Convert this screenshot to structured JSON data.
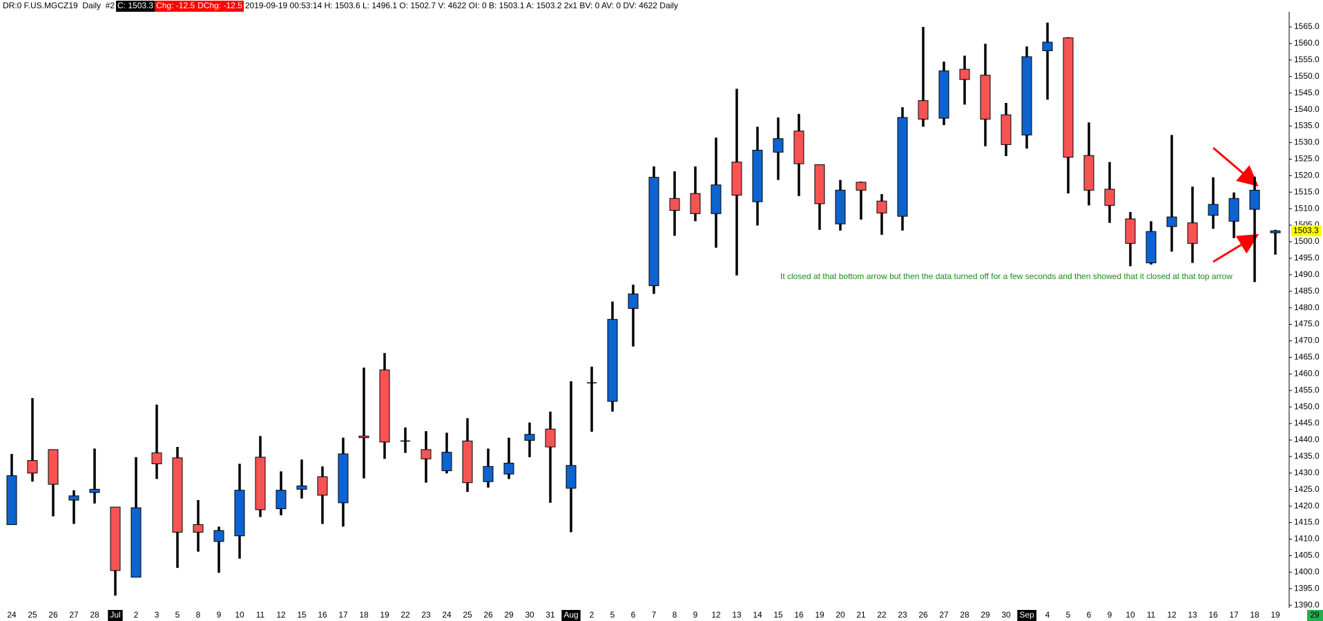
{
  "header": {
    "symbol": "DR:0 F.US.MGCZ19  Daily  #2",
    "close": "C: 1503.3",
    "change": "Chg: -12.5",
    "day_change": "DChg: -12.5",
    "details": "2019-09-19 00:53:14 H: 1503.6 L: 1496.1 O: 1502.7 V: 4622 OI: 0 B: 1503.1 A: 1503.2 2x1 BV: 0 AV: 0 DV: 4622 Daily"
  },
  "chart_data": {
    "type": "candlestick",
    "categories": [
      "24",
      "25",
      "26",
      "27",
      "28",
      "Jul",
      "2",
      "3",
      "5",
      "8",
      "9",
      "10",
      "11",
      "12",
      "15",
      "16",
      "17",
      "18",
      "19",
      "22",
      "23",
      "24",
      "25",
      "26",
      "29",
      "30",
      "31",
      "Aug",
      "2",
      "5",
      "6",
      "7",
      "8",
      "9",
      "12",
      "13",
      "14",
      "15",
      "16",
      "19",
      "20",
      "21",
      "22",
      "23",
      "26",
      "27",
      "28",
      "29",
      "30",
      "Sep",
      "4",
      "5",
      "6",
      "9",
      "10",
      "11",
      "12",
      "13",
      "16",
      "17",
      "18",
      "19"
    ],
    "open": [
      1414.4,
      1433.8,
      1437.1,
      1421.8,
      1424.1,
      1419.7,
      1398.5,
      1436.1,
      1434.6,
      1414.4,
      1409.3,
      1411.0,
      1434.8,
      1419.2,
      1425.1,
      1428.9,
      1421.0,
      1441.2,
      1461.2,
      1439.7,
      1437.1,
      1430.7,
      1439.7,
      1427.4,
      1429.7,
      1439.9,
      1443.3,
      1425.4,
      1457.3,
      1451.7,
      1479.8,
      1486.7,
      1513.1,
      1514.6,
      1508.5,
      1524.1,
      1512.1,
      1527.1,
      1533.5,
      1523.3,
      1505.4,
      1518.0,
      1512.3,
      1507.7,
      1542.7,
      1537.4,
      1552.2,
      1550.4,
      1538.4,
      1532.3,
      1557.8,
      1561.7,
      1526.1,
      1515.9,
      1506.9,
      1493.6,
      1504.6,
      1505.7,
      1508.0,
      1506.2,
      1509.8,
      1502.7
    ],
    "high": [
      1435.8,
      1452.7,
      1437.1,
      1424.8,
      1437.4,
      1419.7,
      1434.8,
      1450.7,
      1437.9,
      1421.8,
      1413.8,
      1432.8,
      1441.2,
      1430.5,
      1434.1,
      1432.0,
      1440.7,
      1461.9,
      1466.3,
      1443.8,
      1442.7,
      1442.2,
      1446.6,
      1437.4,
      1440.7,
      1445.3,
      1448.6,
      1457.8,
      1462.2,
      1481.9,
      1487.0,
      1522.8,
      1521.3,
      1522.8,
      1531.5,
      1546.3,
      1534.8,
      1537.6,
      1538.7,
      1523.3,
      1518.7,
      1518.2,
      1514.4,
      1540.7,
      1565.0,
      1554.5,
      1556.3,
      1559.9,
      1542.0,
      1559.1,
      1566.3,
      1561.9,
      1536.1,
      1524.1,
      1509.0,
      1506.2,
      1532.3,
      1516.7,
      1519.5,
      1514.9,
      1519.7,
      1503.6
    ],
    "low": [
      1414.4,
      1427.4,
      1416.9,
      1414.6,
      1420.8,
      1392.9,
      1398.5,
      1428.2,
      1401.3,
      1406.2,
      1399.8,
      1404.1,
      1416.7,
      1417.2,
      1422.3,
      1414.6,
      1413.8,
      1428.4,
      1434.3,
      1436.1,
      1427.1,
      1429.9,
      1424.3,
      1425.6,
      1428.2,
      1434.8,
      1421.0,
      1412.1,
      1442.5,
      1448.6,
      1468.3,
      1484.2,
      1501.8,
      1506.2,
      1498.2,
      1489.8,
      1504.9,
      1518.7,
      1513.8,
      1503.6,
      1503.4,
      1506.7,
      1502.1,
      1503.4,
      1534.8,
      1535.3,
      1541.5,
      1528.9,
      1525.9,
      1528.2,
      1543.0,
      1514.6,
      1511.0,
      1505.7,
      1492.6,
      1493.1,
      1497.0,
      1493.6,
      1503.9,
      1501.1,
      1487.8,
      1496.1
    ],
    "close": [
      1429.2,
      1430.0,
      1426.6,
      1423.1,
      1425.1,
      1400.5,
      1419.5,
      1432.8,
      1412.1,
      1412.1,
      1412.6,
      1424.8,
      1418.9,
      1424.8,
      1426.1,
      1423.3,
      1435.8,
      1440.7,
      1439.4,
      1439.7,
      1434.3,
      1436.3,
      1427.1,
      1432.0,
      1433.0,
      1441.7,
      1437.9,
      1432.3,
      1457.3,
      1476.5,
      1484.2,
      1519.5,
      1509.5,
      1508.5,
      1517.2,
      1514.1,
      1527.7,
      1531.2,
      1523.6,
      1511.5,
      1515.6,
      1515.6,
      1508.7,
      1537.6,
      1537.1,
      1551.7,
      1549.1,
      1537.1,
      1529.4,
      1556.0,
      1560.4,
      1525.6,
      1515.6,
      1511.0,
      1499.5,
      1503.1,
      1507.5,
      1499.5,
      1511.3,
      1513.1,
      1515.6,
      1503.3
    ],
    "up_color": "#0d63cf",
    "down_color": "#f65353",
    "wick_color": "#000000",
    "ylim": [
      1389.2,
      1569.6
    ],
    "yticks": [
      {
        "value": 1390,
        "label": "1390.0"
      },
      {
        "value": 1395,
        "label": "1395.0"
      },
      {
        "value": 1400,
        "label": "1400.0"
      },
      {
        "value": 1405,
        "label": "1405.0"
      },
      {
        "value": 1410,
        "label": "1410.0"
      },
      {
        "value": 1415,
        "label": "1415.0"
      },
      {
        "value": 1420,
        "label": "1420.0"
      },
      {
        "value": 1425,
        "label": "1425.0"
      },
      {
        "value": 1430,
        "label": "1430.0"
      },
      {
        "value": 1435,
        "label": "1435.0"
      },
      {
        "value": 1440,
        "label": "1440.0"
      },
      {
        "value": 1445,
        "label": "1445.0"
      },
      {
        "value": 1450,
        "label": "1450.0"
      },
      {
        "value": 1455,
        "label": "1455.0"
      },
      {
        "value": 1460,
        "label": "1460.0"
      },
      {
        "value": 1465,
        "label": "1465.0"
      },
      {
        "value": 1470,
        "label": "1470.0"
      },
      {
        "value": 1475,
        "label": "1475.0"
      },
      {
        "value": 1480,
        "label": "1480.0"
      },
      {
        "value": 1485,
        "label": "1485.0"
      },
      {
        "value": 1490,
        "label": "1490.0"
      },
      {
        "value": 1495,
        "label": "1495.0"
      },
      {
        "value": 1500,
        "label": "1500.0"
      },
      {
        "value": 1505,
        "label": "1505.0"
      },
      {
        "value": 1510,
        "label": "1510.0"
      },
      {
        "value": 1515,
        "label": "1515.0"
      },
      {
        "value": 1520,
        "label": "1520.0"
      },
      {
        "value": 1525,
        "label": "1525.0"
      },
      {
        "value": 1530,
        "label": "1530.0"
      },
      {
        "value": 1535,
        "label": "1535.0"
      },
      {
        "value": 1540,
        "label": "1540.0"
      },
      {
        "value": 1545,
        "label": "1545.0"
      },
      {
        "value": 1550,
        "label": "1550.0"
      },
      {
        "value": 1555,
        "label": "1555.0"
      },
      {
        "value": 1560,
        "label": "1560.0"
      },
      {
        "value": 1565,
        "label": "1565.0"
      }
    ],
    "x_axis_next_label": "29",
    "annotation": "It closed at that bottom arrow but then the data turned off for a few seconds and then showed that it closed at that top arrow"
  }
}
